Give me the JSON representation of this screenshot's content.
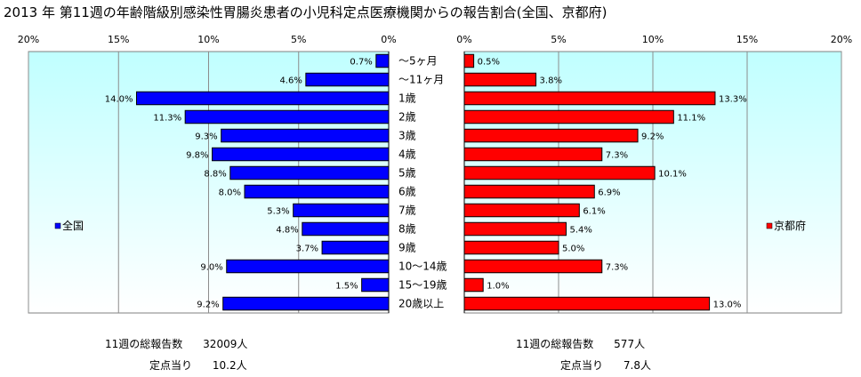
{
  "chart_data": {
    "title": "2013 年 第11週の年齢階級別感染性胃腸炎患者の小児科定点医療機関からの報告割合(全国、京都府)",
    "type": "bar",
    "orientation": "horizontal-butterfly",
    "unit": "%",
    "categories": [
      "～5ヶ月",
      "～11ヶ月",
      "1歳",
      "2歳",
      "3歳",
      "4歳",
      "5歳",
      "6歳",
      "7歳",
      "8歳",
      "9歳",
      "10～14歳",
      "15～19歳",
      "20歳以上"
    ],
    "xlim": [
      0,
      20
    ],
    "ticks": [
      0,
      5,
      10,
      15,
      20
    ],
    "tick_labels": [
      "0%",
      "5%",
      "10%",
      "15%",
      "20%"
    ],
    "grid": true,
    "series": [
      {
        "name": "全国",
        "color": "#0000ff",
        "side": "left",
        "values": [
          0.7,
          4.6,
          14.0,
          11.3,
          9.3,
          9.8,
          8.8,
          8.0,
          5.3,
          4.8,
          3.7,
          9.0,
          1.5,
          9.2
        ],
        "value_labels": [
          "0.7%",
          "4.6%",
          "14.0%",
          "11.3%",
          "9.3%",
          "9.8%",
          "8.8%",
          "8.0%",
          "5.3%",
          "4.8%",
          "3.7%",
          "9.0%",
          "1.5%",
          "9.2%"
        ]
      },
      {
        "name": "京都府",
        "color": "#ff0000",
        "side": "right",
        "values": [
          0.5,
          3.8,
          13.3,
          11.1,
          9.2,
          7.3,
          10.1,
          6.9,
          6.1,
          5.4,
          5.0,
          7.3,
          1.0,
          13.0
        ],
        "value_labels": [
          "0.5%",
          "3.8%",
          "13.3%",
          "11.1%",
          "9.2%",
          "7.3%",
          "10.1%",
          "6.9%",
          "6.1%",
          "5.4%",
          "5.0%",
          "7.3%",
          "1.0%",
          "13.0%"
        ]
      }
    ],
    "legend_placement": "inside each panel, left-middle"
  },
  "summary": {
    "national": {
      "reports_label": "11週の総報告数",
      "reports_value": "32009人",
      "per_site_label": "定点当り",
      "per_site_value": "10.2人"
    },
    "kyoto": {
      "reports_label": "11週の総報告数",
      "reports_value": "577人",
      "per_site_label": "定点当り",
      "per_site_value": "7.8人"
    }
  },
  "colors": {
    "plot_bg_top": "#ffffff",
    "plot_bg_bottom": "#c0ffff",
    "gridline": "#8c8c8c",
    "bar_stroke": "#000000"
  }
}
